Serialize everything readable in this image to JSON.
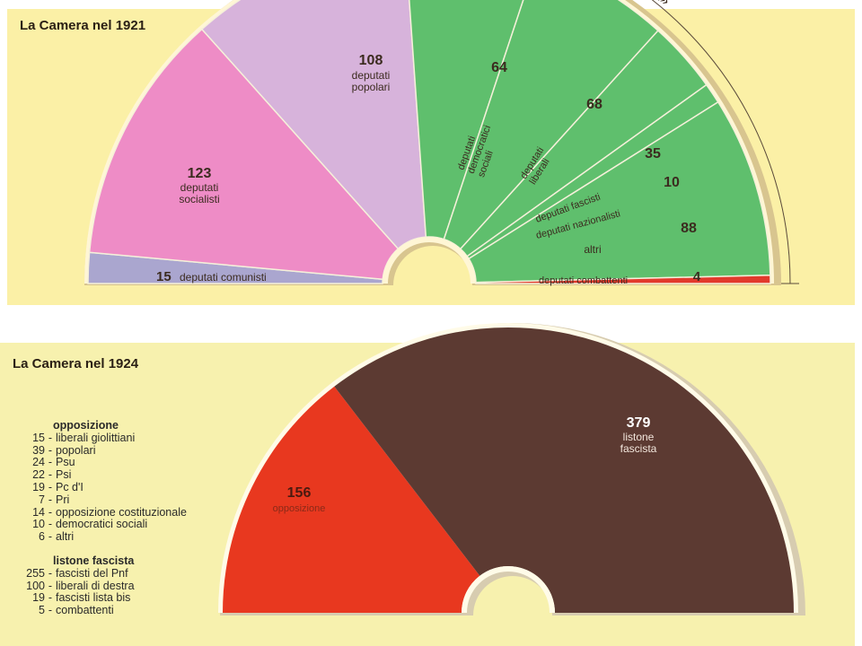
{
  "chart_data": [
    {
      "type": "pie",
      "variant": "hemicycle",
      "title": "La Camera nel 1921",
      "bracket_label": "«Blocchi nazionali»",
      "segments": [
        {
          "value": 15,
          "label_num": "15",
          "label": "deputati comunisti",
          "color": "#aaa6cf"
        },
        {
          "value": 123,
          "label_num": "123",
          "label": "deputati socialisti",
          "color": "#ee8cc6"
        },
        {
          "value": 108,
          "label_num": "108",
          "label": "deputati popolari",
          "color": "#d7b3db"
        },
        {
          "value": 64,
          "label_num": "64",
          "label": "deputati democratici sociali",
          "color": "#5fbf6d"
        },
        {
          "value": 68,
          "label_num": "68",
          "label": "deputati liberali",
          "color": "#5fbf6d"
        },
        {
          "value": 35,
          "label_num": "35",
          "label": "deputati fascisti",
          "color": "#5fbf6d"
        },
        {
          "value": 10,
          "label_num": "10",
          "label": "deputati nazionalisti",
          "color": "#5fbf6d"
        },
        {
          "value": 88,
          "label_num": "88",
          "label": "altri",
          "color": "#5fbf6d"
        },
        {
          "value": 4,
          "label_num": "4",
          "label": "deputati combattenti",
          "color": "#e23a2c"
        }
      ]
    },
    {
      "type": "pie",
      "variant": "hemicycle",
      "title": "La Camera nel 1924",
      "segments": [
        {
          "value": 156,
          "label_num": "156",
          "label": "opposizione",
          "color": "#e8381f"
        },
        {
          "value": 379,
          "label_num": "379",
          "label": "listone fascista",
          "color": "#5c3a32"
        }
      ],
      "legend": {
        "opposition_heading": "opposizione",
        "opposition": [
          {
            "num": "15",
            "label": "liberali giolittiani"
          },
          {
            "num": "39",
            "label": "popolari"
          },
          {
            "num": "24",
            "label": "Psu"
          },
          {
            "num": "22",
            "label": "Psi"
          },
          {
            "num": "19",
            "label": "Pc d'I"
          },
          {
            "num": "7",
            "label": "Pri"
          },
          {
            "num": "14",
            "label": "opposizione costituzionale"
          },
          {
            "num": "10",
            "label": "democratici sociali"
          },
          {
            "num": "6",
            "label": "altri"
          }
        ],
        "listone_heading": "listone fascista",
        "listone": [
          {
            "num": "255",
            "label": "fascisti del Pnf"
          },
          {
            "num": "100",
            "label": "liberali di destra"
          },
          {
            "num": "19",
            "label": "fascisti lista bis"
          },
          {
            "num": "5",
            "label": "combattenti"
          }
        ]
      }
    }
  ]
}
